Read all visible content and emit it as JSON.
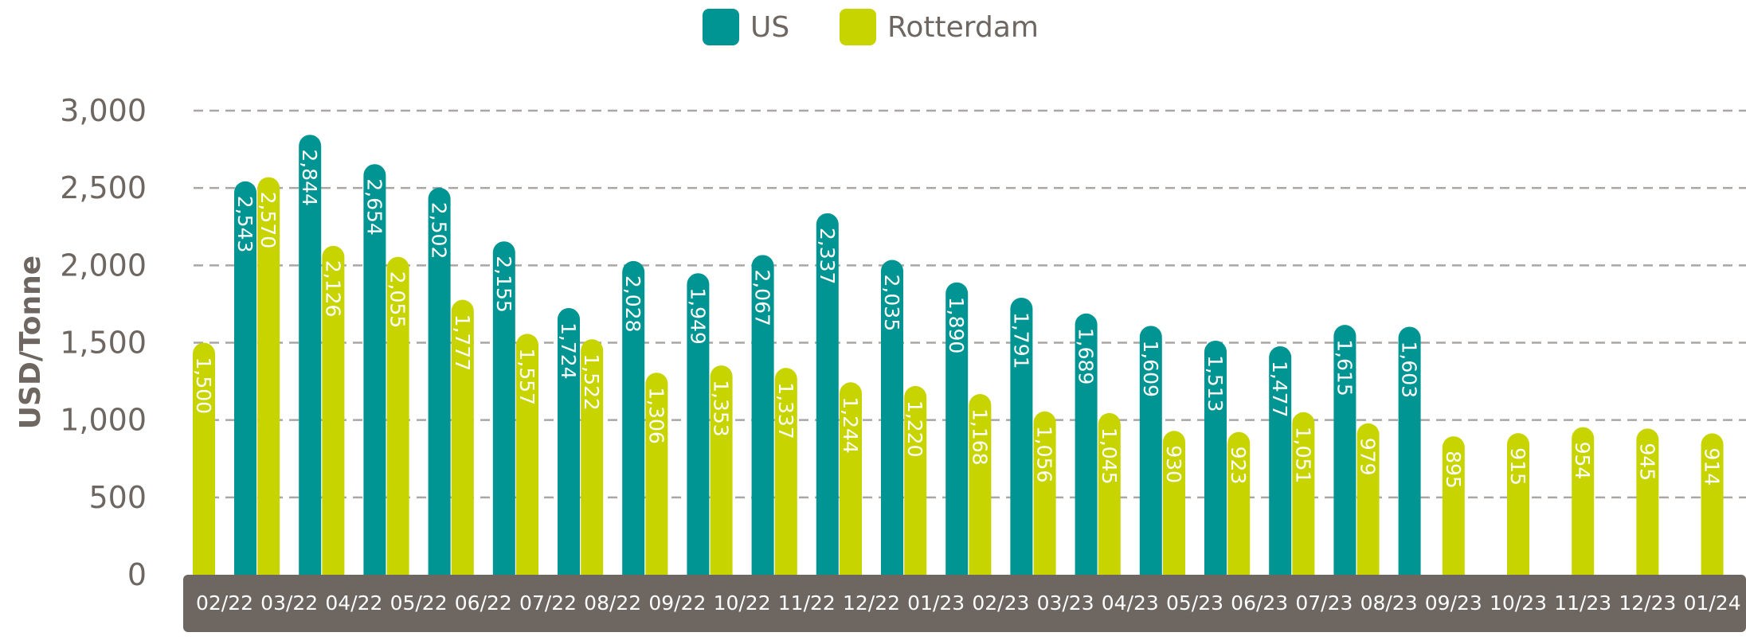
{
  "chart_data": {
    "type": "bar",
    "ylabel": "USD/Tonne",
    "ylim": [
      0,
      3000
    ],
    "yticks": [
      "0",
      "500",
      "1,000",
      "1,500",
      "2,000",
      "2,500",
      "3,000"
    ],
    "ytick_values": [
      0,
      500,
      1000,
      1500,
      2000,
      2500,
      3000
    ],
    "grid": true,
    "legend_position": "top-center",
    "categories": [
      "02/22",
      "03/22",
      "04/22",
      "05/22",
      "06/22",
      "07/22",
      "08/22",
      "09/22",
      "10/22",
      "11/22",
      "12/22",
      "01/23",
      "02/23",
      "03/23",
      "04/23",
      "05/23",
      "06/23",
      "07/23",
      "08/23",
      "09/23",
      "10/23",
      "11/23",
      "12/23",
      "01/24"
    ],
    "series": [
      {
        "name": "Rotterdam",
        "color": "#c8d400",
        "values": [
          1500,
          2570,
          2126,
          2055,
          1777,
          1557,
          1522,
          1306,
          1353,
          1337,
          1244,
          1220,
          1168,
          1056,
          1045,
          930,
          923,
          1051,
          979,
          895,
          915,
          954,
          945,
          914
        ],
        "labels": [
          "1,500",
          "2,570",
          "2,126",
          "2,055",
          "1,777",
          "1,557",
          "1,522",
          "1,306",
          "1,353",
          "1,337",
          "1,244",
          "1,220",
          "1,168",
          "1,056",
          "1,045",
          "930",
          "923",
          "1,051",
          "979",
          "895",
          "915",
          "954",
          "945",
          "914"
        ]
      },
      {
        "name": "US",
        "color": "#009593",
        "values": [
          2543,
          2844,
          2654,
          2502,
          2155,
          1724,
          2028,
          1949,
          2067,
          2337,
          2035,
          1890,
          1791,
          1689,
          1609,
          1513,
          1477,
          1615,
          1603,
          null,
          null,
          null,
          null,
          null
        ],
        "labels": [
          "2,543",
          "2,844",
          "2,654",
          "2,502",
          "2,155",
          "1,724",
          "2,028",
          "1,949",
          "2,067",
          "2,337",
          "2,035",
          "1,890",
          "1,791",
          "1,689",
          "1,609",
          "1,513",
          "1,477",
          "1,615",
          "1,603",
          null,
          null,
          null,
          null,
          null
        ]
      }
    ],
    "colors": {
      "axis_band": "#6d6661",
      "tick_text": "#6d6661",
      "grid": "#a9a6a3"
    }
  },
  "legend": [
    {
      "name": "US",
      "color": "#009593"
    },
    {
      "name": "Rotterdam",
      "color": "#c8d400"
    }
  ]
}
